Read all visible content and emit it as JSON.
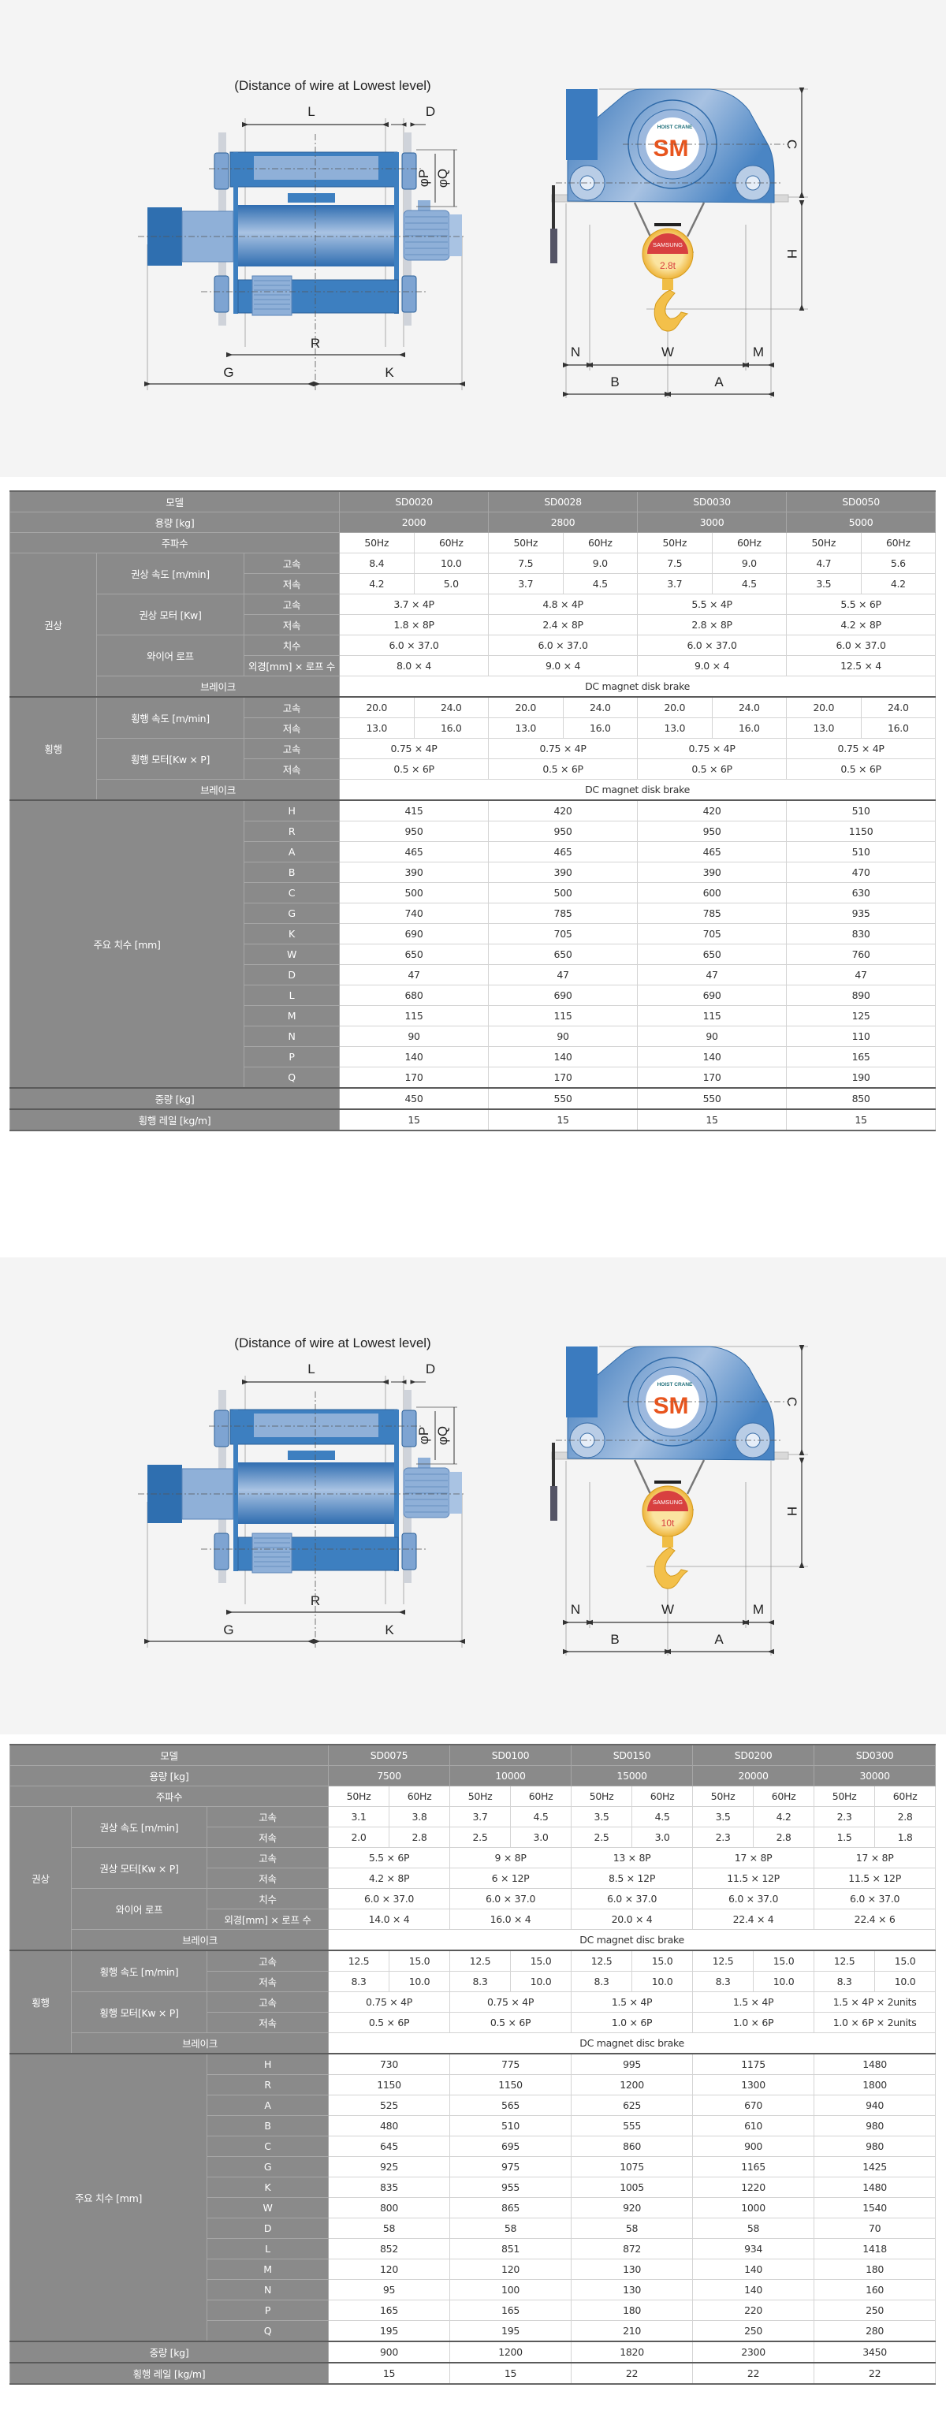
{
  "sections": [
    {
      "title": "(Distance of wire at Lowest level)",
      "labels": {
        "L": "L",
        "D": "D",
        "P": "φP",
        "Q": "φQ",
        "R": "R",
        "G": "G",
        "K": "K",
        "C": "C",
        "H": "H",
        "N": "N",
        "W": "W",
        "M": "M",
        "B": "B",
        "A": "A"
      },
      "logo": {
        "brand": "SM",
        "tagline": "HOIST CRANE",
        "hook_brand": "SAMSUNG",
        "hook_capacity": "2.8t"
      }
    },
    {
      "title": "(Distance of wire at Lowest level)",
      "labels": {
        "L": "L",
        "D": "D",
        "P": "φP",
        "Q": "φQ",
        "R": "R",
        "G": "G",
        "K": "K",
        "C": "C",
        "H": "H",
        "N": "N",
        "W": "W",
        "M": "M",
        "B": "B",
        "A": "A"
      },
      "logo": {
        "brand": "SM",
        "tagline": "HOIST CRANE",
        "hook_brand": "SAMSUNG",
        "hook_capacity": "10t"
      }
    }
  ],
  "colors": {
    "header_bg": "#8a8a8a",
    "hoist_blue": "#3d7fc0",
    "hook_yellow": "#f3c04a",
    "brand_red": "#d84040"
  },
  "tables": [
    {
      "model_label": "모델",
      "capacity_label": "용량 [kg]",
      "freq_label": "주파수",
      "models": [
        "SD0020",
        "SD0028",
        "SD0030",
        "SD0050"
      ],
      "capacities": [
        "2000",
        "2800",
        "3000",
        "5000"
      ],
      "freqs": [
        "50Hz",
        "60Hz",
        "50Hz",
        "60Hz",
        "50Hz",
        "60Hz",
        "50Hz",
        "60Hz"
      ],
      "hoist": {
        "group": "권상",
        "speed": {
          "label": "권상 속도 [m/min]",
          "subs": [
            "고속",
            "저속"
          ],
          "values": [
            [
              "8.4",
              "10.0",
              "7.5",
              "9.0",
              "7.5",
              "9.0",
              "4.7",
              "5.6"
            ],
            [
              "4.2",
              "5.0",
              "3.7",
              "4.5",
              "3.7",
              "4.5",
              "3.5",
              "4.2"
            ]
          ]
        },
        "motor": {
          "label": "권상 모터 [Kw]",
          "subs": [
            "고속",
            "저속"
          ],
          "values": [
            [
              "3.7 × 4P",
              "4.8 × 4P",
              "5.5 × 4P",
              "5.5 × 6P"
            ],
            [
              "1.8 × 8P",
              "2.4 × 8P",
              "2.8 × 8P",
              "4.2 × 8P"
            ]
          ]
        },
        "rope": {
          "label": "와이어 로프",
          "subs": [
            "치수",
            "외경[mm] × 로프 수"
          ],
          "values": [
            [
              "6.0 × 37.0",
              "6.0 × 37.0",
              "6.0 × 37.0",
              "6.0 × 37.0"
            ],
            [
              "8.0 × 4",
              "9.0 × 4",
              "9.0 × 4",
              "12.5 × 4"
            ]
          ]
        },
        "brake": {
          "label": "브레이크",
          "value": "DC magnet disk brake"
        }
      },
      "travel": {
        "group": "횡행",
        "speed": {
          "label": "횡행 속도 [m/min]",
          "subs": [
            "고속",
            "저속"
          ],
          "values": [
            [
              "20.0",
              "24.0",
              "20.0",
              "24.0",
              "20.0",
              "24.0",
              "20.0",
              "24.0"
            ],
            [
              "13.0",
              "16.0",
              "13.0",
              "16.0",
              "13.0",
              "16.0",
              "13.0",
              "16.0"
            ]
          ]
        },
        "motor": {
          "label": "횡행 모터[Kw × P]",
          "subs": [
            "고속",
            "저속"
          ],
          "values": [
            [
              "0.75 × 4P",
              "0.75 × 4P",
              "0.75 × 4P",
              "0.75 × 4P"
            ],
            [
              "0.5 × 6P",
              "0.5 × 6P",
              "0.5 × 6P",
              "0.5 × 6P"
            ]
          ]
        },
        "brake": {
          "label": "브레이크",
          "value": "DC magnet disk brake"
        }
      },
      "dimensions": {
        "label": "주요 치수 [mm]",
        "rows": [
          {
            "key": "H",
            "values": [
              "415",
              "420",
              "420",
              "510"
            ]
          },
          {
            "key": "R",
            "values": [
              "950",
              "950",
              "950",
              "1150"
            ]
          },
          {
            "key": "A",
            "values": [
              "465",
              "465",
              "465",
              "510"
            ]
          },
          {
            "key": "B",
            "values": [
              "390",
              "390",
              "390",
              "470"
            ]
          },
          {
            "key": "C",
            "values": [
              "500",
              "500",
              "600",
              "630"
            ]
          },
          {
            "key": "G",
            "values": [
              "740",
              "785",
              "785",
              "935"
            ]
          },
          {
            "key": "K",
            "values": [
              "690",
              "705",
              "705",
              "830"
            ]
          },
          {
            "key": "W",
            "values": [
              "650",
              "650",
              "650",
              "760"
            ]
          },
          {
            "key": "D",
            "values": [
              "47",
              "47",
              "47",
              "47"
            ]
          },
          {
            "key": "L",
            "values": [
              "680",
              "690",
              "690",
              "890"
            ]
          },
          {
            "key": "M",
            "values": [
              "115",
              "115",
              "115",
              "125"
            ]
          },
          {
            "key": "N",
            "values": [
              "90",
              "90",
              "90",
              "110"
            ]
          },
          {
            "key": "P",
            "values": [
              "140",
              "140",
              "140",
              "165"
            ]
          },
          {
            "key": "Q",
            "values": [
              "170",
              "170",
              "170",
              "190"
            ]
          }
        ]
      },
      "weight": {
        "label": "중량 [kg]",
        "values": [
          "450",
          "550",
          "550",
          "850"
        ]
      },
      "rail": {
        "label": "횡행 레일 [kg/m]",
        "values": [
          "15",
          "15",
          "15",
          "15"
        ]
      }
    },
    {
      "model_label": "모델",
      "capacity_label": "용량 [kg]",
      "freq_label": "주파수",
      "models": [
        "SD0075",
        "SD0100",
        "SD0150",
        "SD0200",
        "SD0300"
      ],
      "capacities": [
        "7500",
        "10000",
        "15000",
        "20000",
        "30000"
      ],
      "freqs": [
        "50Hz",
        "60Hz",
        "50Hz",
        "60Hz",
        "50Hz",
        "60Hz",
        "50Hz",
        "60Hz",
        "50Hz",
        "60Hz"
      ],
      "hoist": {
        "group": "권상",
        "speed": {
          "label": "권상 속도 [m/min]",
          "subs": [
            "고속",
            "저속"
          ],
          "values": [
            [
              "3.1",
              "3.8",
              "3.7",
              "4.5",
              "3.5",
              "4.5",
              "3.5",
              "4.2",
              "2.3",
              "2.8"
            ],
            [
              "2.0",
              "2.8",
              "2.5",
              "3.0",
              "2.5",
              "3.0",
              "2.3",
              "2.8",
              "1.5",
              "1.8"
            ]
          ]
        },
        "motor": {
          "label": "권상 모터[Kw × P]",
          "subs": [
            "고속",
            "저속"
          ],
          "values": [
            [
              "5.5 × 6P",
              "9 × 8P",
              "13 × 8P",
              "17 × 8P",
              "17 × 8P"
            ],
            [
              "4.2 × 8P",
              "6 × 12P",
              "8.5 × 12P",
              "11.5 × 12P",
              "11.5 × 12P"
            ]
          ]
        },
        "rope": {
          "label": "와이어 로프",
          "subs": [
            "치수",
            "외경[mm] × 로프 수"
          ],
          "values": [
            [
              "6.0 × 37.0",
              "6.0 × 37.0",
              "6.0 × 37.0",
              "6.0 × 37.0",
              "6.0 × 37.0"
            ],
            [
              "14.0 × 4",
              "16.0 × 4",
              "20.0 × 4",
              "22.4 × 4",
              "22.4 × 6"
            ]
          ]
        },
        "brake": {
          "label": "브레이크",
          "value": "DC magnet disc brake"
        }
      },
      "travel": {
        "group": "횡행",
        "speed": {
          "label": "횡행 속도 [m/min]",
          "subs": [
            "고속",
            "저속"
          ],
          "values": [
            [
              "12.5",
              "15.0",
              "12.5",
              "15.0",
              "12.5",
              "15.0",
              "12.5",
              "15.0",
              "12.5",
              "15.0"
            ],
            [
              "8.3",
              "10.0",
              "8.3",
              "10.0",
              "8.3",
              "10.0",
              "8.3",
              "10.0",
              "8.3",
              "10.0"
            ]
          ]
        },
        "motor": {
          "label": "횡행 모터[Kw × P]",
          "subs": [
            "고속",
            "저속"
          ],
          "values": [
            [
              "0.75 × 4P",
              "0.75 × 4P",
              "1.5 × 4P",
              "1.5 × 4P",
              "1.5 × 4P × 2units"
            ],
            [
              "0.5 × 6P",
              "0.5 × 6P",
              "1.0 × 6P",
              "1.0 × 6P",
              "1.0 × 6P × 2units"
            ]
          ]
        },
        "brake": {
          "label": "브레이크",
          "value": "DC magnet disc brake"
        }
      },
      "dimensions": {
        "label": "주요 치수 [mm]",
        "rows": [
          {
            "key": "H",
            "values": [
              "730",
              "775",
              "995",
              "1175",
              "1480"
            ]
          },
          {
            "key": "R",
            "values": [
              "1150",
              "1150",
              "1200",
              "1300",
              "1800"
            ]
          },
          {
            "key": "A",
            "values": [
              "525",
              "565",
              "625",
              "670",
              "940"
            ]
          },
          {
            "key": "B",
            "values": [
              "480",
              "510",
              "555",
              "610",
              "980"
            ]
          },
          {
            "key": "C",
            "values": [
              "645",
              "695",
              "860",
              "900",
              "980"
            ]
          },
          {
            "key": "G",
            "values": [
              "925",
              "975",
              "1075",
              "1165",
              "1425"
            ]
          },
          {
            "key": "K",
            "values": [
              "835",
              "955",
              "1005",
              "1220",
              "1480"
            ]
          },
          {
            "key": "W",
            "values": [
              "800",
              "865",
              "920",
              "1000",
              "1540"
            ]
          },
          {
            "key": "D",
            "values": [
              "58",
              "58",
              "58",
              "58",
              "70"
            ]
          },
          {
            "key": "L",
            "values": [
              "852",
              "851",
              "872",
              "934",
              "1418"
            ]
          },
          {
            "key": "M",
            "values": [
              "120",
              "120",
              "130",
              "140",
              "180"
            ]
          },
          {
            "key": "N",
            "values": [
              "95",
              "100",
              "130",
              "140",
              "160"
            ]
          },
          {
            "key": "P",
            "values": [
              "165",
              "165",
              "180",
              "220",
              "250"
            ]
          },
          {
            "key": "Q",
            "values": [
              "195",
              "195",
              "210",
              "250",
              "280"
            ]
          }
        ]
      },
      "weight": {
        "label": "중량 [kg]",
        "values": [
          "900",
          "1200",
          "1820",
          "2300",
          "3450"
        ]
      },
      "rail": {
        "label": "횡행 레일 [kg/m]",
        "values": [
          "15",
          "15",
          "22",
          "22",
          "22"
        ]
      }
    }
  ]
}
